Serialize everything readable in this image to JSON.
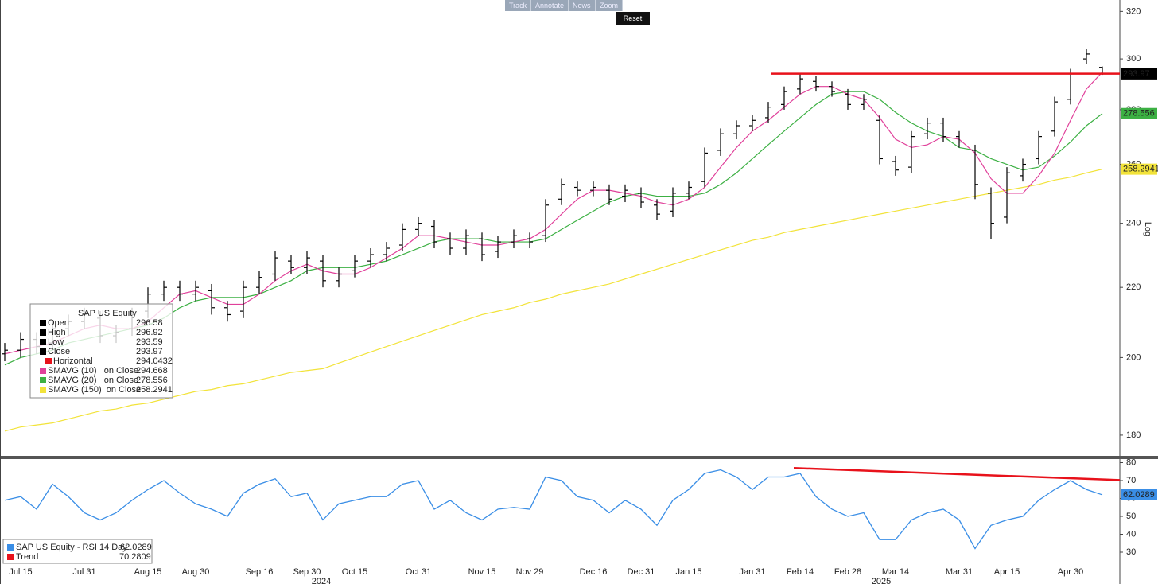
{
  "toolbar": {
    "buttons": [
      "Track",
      "Annotate",
      "News",
      "Zoom"
    ],
    "reset": "Reset"
  },
  "chart_data": [
    {
      "type": "ohlc",
      "categories": [
        null,
        "Jul 15",
        null,
        null,
        null,
        "Jul 31",
        null,
        null,
        null,
        "Aug 15",
        null,
        null,
        "Aug 30",
        null,
        null,
        null,
        "Sep 16",
        null,
        null,
        "Sep 30",
        null,
        null,
        "Oct 15",
        null,
        null,
        null,
        "Oct 31",
        null,
        null,
        null,
        "Nov 15",
        null,
        null,
        "Nov 29",
        null,
        null,
        null,
        "Dec 16",
        null,
        null,
        "Dec 31",
        null,
        null,
        "Jan 15",
        null,
        null,
        null,
        "Jan 31",
        null,
        null,
        "Feb 14",
        null,
        null,
        "Feb 28",
        null,
        null,
        "Mar 14",
        null,
        null,
        null,
        "Mar 31",
        null,
        null,
        "Apr 15",
        null,
        null,
        null,
        "Apr 30",
        null,
        null
      ],
      "year_labels": [
        "2024",
        "2025"
      ],
      "legend_title": "SAP US Equity",
      "series": [
        {
          "name": "Open",
          "color": "#000000",
          "values": [
            201,
            202,
            205,
            204,
            208,
            210,
            211,
            206,
            208,
            213,
            218,
            220,
            218,
            219,
            214,
            213,
            220,
            224,
            228,
            226,
            228,
            222,
            225,
            228,
            230,
            233,
            238,
            239,
            235,
            232,
            235,
            231,
            234,
            235,
            236,
            248,
            252,
            251,
            251,
            249,
            250,
            246,
            244,
            250,
            254,
            265,
            271,
            274,
            277,
            282,
            288,
            291,
            289,
            286,
            282,
            276,
            261,
            259,
            271,
            275,
            270,
            265,
            250,
            242,
            256,
            262,
            272,
            284,
            300,
            296.58
          ]
        },
        {
          "name": "High",
          "color": "#000000",
          "values": [
            204,
            207,
            207,
            210,
            212,
            214,
            213,
            209,
            214,
            220,
            222,
            222,
            222,
            221,
            216,
            222,
            225,
            231,
            230,
            231,
            230,
            226,
            230,
            232,
            234,
            240,
            242,
            241,
            237,
            238,
            237,
            236,
            238,
            237,
            248,
            255,
            254,
            254,
            253,
            253,
            252,
            248,
            252,
            254,
            266,
            273,
            276,
            278,
            283,
            289,
            294,
            293,
            291,
            288,
            286,
            278,
            263,
            272,
            277,
            277,
            272,
            267,
            252,
            259,
            262,
            272,
            285,
            296,
            304,
            296.92
          ]
        },
        {
          "name": "Low",
          "color": "#000000",
          "values": [
            199,
            200,
            201,
            202,
            206,
            208,
            204,
            204,
            206,
            211,
            216,
            216,
            216,
            212,
            210,
            211,
            218,
            222,
            224,
            224,
            220,
            220,
            223,
            226,
            228,
            231,
            236,
            232,
            230,
            230,
            228,
            229,
            232,
            232,
            234,
            246,
            249,
            249,
            246,
            247,
            245,
            241,
            242,
            248,
            252,
            263,
            269,
            272,
            275,
            280,
            286,
            287,
            285,
            280,
            280,
            260,
            256,
            257,
            269,
            268,
            266,
            248,
            235,
            240,
            254,
            260,
            270,
            282,
            298,
            293.59
          ]
        },
        {
          "name": "Close",
          "color": "#000000",
          "values": [
            202,
            205,
            203,
            208,
            210,
            212,
            206,
            207,
            212,
            218,
            220,
            218,
            220,
            214,
            212,
            220,
            223,
            229,
            226,
            229,
            222,
            224,
            228,
            230,
            232,
            238,
            240,
            234,
            232,
            236,
            230,
            234,
            236,
            234,
            246,
            253,
            251,
            252,
            248,
            251,
            247,
            243,
            250,
            252,
            264,
            271,
            274,
            276,
            281,
            287,
            292,
            289,
            287,
            282,
            284,
            262,
            258,
            270,
            275,
            270,
            268,
            253,
            240,
            257,
            260,
            270,
            283,
            294,
            302,
            293.97
          ]
        }
      ],
      "horizontal": {
        "name": "Horizontal",
        "color": "#e8121b",
        "value": 294.0432
      },
      "overlays": [
        {
          "name": "SMAVG (10)   on Close",
          "color": "#e0409a",
          "values": [
            201,
            202,
            203,
            204,
            206,
            208,
            209,
            208,
            208,
            210,
            214,
            218,
            219,
            217,
            215,
            215,
            218,
            222,
            225,
            227,
            225,
            224,
            224,
            226,
            229,
            232,
            236,
            236,
            235,
            234,
            233,
            233,
            234,
            235,
            238,
            243,
            248,
            251,
            251,
            250,
            249,
            247,
            246,
            248,
            252,
            259,
            266,
            272,
            276,
            281,
            286,
            289,
            289,
            286,
            284,
            277,
            269,
            266,
            267,
            270,
            269,
            264,
            255,
            250,
            250,
            256,
            264,
            276,
            288,
            294.668
          ]
        },
        {
          "name": "SMAVG (20)   on Close",
          "color": "#3cb043",
          "values": [
            198,
            200,
            201,
            202,
            204,
            205,
            206,
            207,
            208,
            209,
            211,
            214,
            216,
            217,
            217,
            217,
            218,
            220,
            222,
            225,
            226,
            226,
            226,
            227,
            228,
            230,
            232,
            234,
            235,
            235,
            235,
            234,
            234,
            234,
            235,
            238,
            241,
            244,
            247,
            249,
            250,
            249,
            249,
            249,
            250,
            253,
            257,
            262,
            267,
            272,
            277,
            282,
            286,
            287,
            287,
            284,
            279,
            275,
            272,
            270,
            266,
            265,
            262,
            260,
            258,
            259,
            263,
            268,
            274,
            278.556
          ]
        },
        {
          "name": "SMAVG (150)  on Close",
          "color": "#f2e33a",
          "values": [
            181,
            182,
            182.5,
            183,
            184,
            185,
            186,
            186.5,
            187.5,
            188,
            189,
            190,
            191,
            191.5,
            192.5,
            193,
            194,
            195,
            196,
            196.5,
            197,
            198.5,
            200,
            201.5,
            203,
            204.5,
            206,
            207.5,
            209,
            210.5,
            212,
            213,
            214,
            215.5,
            216.5,
            218,
            219,
            220,
            221,
            222.5,
            224,
            225.5,
            227,
            228.5,
            230,
            231.5,
            233,
            234.5,
            235.5,
            237,
            238,
            239,
            240,
            241,
            242,
            243,
            244,
            245,
            246,
            247,
            248,
            249,
            250,
            251,
            252,
            253,
            254.5,
            255.5,
            257,
            258.2941
          ]
        }
      ],
      "log": true,
      "axis_label": "Log",
      "ylim": [
        175,
        325
      ],
      "yticks": [
        180,
        200,
        220,
        240,
        260,
        280,
        300,
        320
      ]
    },
    {
      "type": "line",
      "series": [
        {
          "name": "SAP US Equity - RSI 14 Day",
          "color": "#3a8ee6",
          "values": [
            59,
            61,
            54,
            68,
            61,
            52,
            48,
            52,
            59,
            65,
            70,
            63,
            57,
            54,
            50,
            63,
            68,
            71,
            61,
            63,
            48,
            57,
            59,
            61,
            61,
            68,
            70,
            54,
            59,
            52,
            48,
            54,
            55,
            54,
            72,
            70,
            61,
            59,
            52,
            59,
            54,
            45,
            59,
            65,
            74,
            76,
            72,
            65,
            72,
            72,
            74,
            61,
            54,
            50,
            52,
            37,
            37,
            48,
            52,
            54,
            48,
            32,
            45,
            48,
            50,
            59,
            65,
            70,
            65,
            62.0289
          ]
        }
      ],
      "trend": {
        "name": "Trend",
        "color": "#e8121b",
        "values": [
          77,
          70.2809
        ]
      },
      "ylim": [
        22,
        82
      ],
      "yticks": [
        30,
        40,
        50,
        60,
        70,
        80
      ]
    }
  ]
}
